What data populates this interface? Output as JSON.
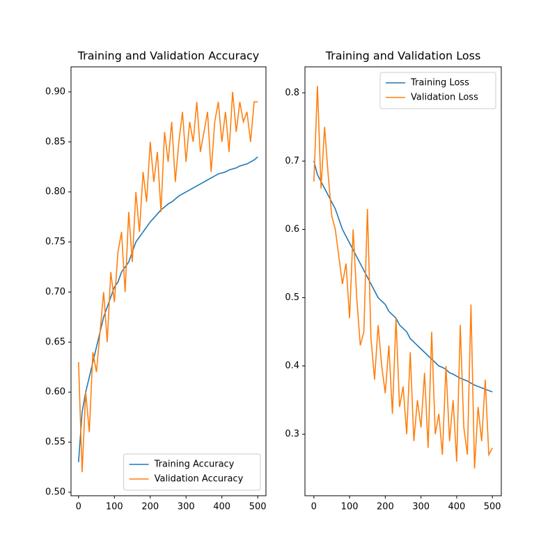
{
  "chart_data": [
    {
      "type": "line",
      "title": "Training and Validation Accuracy",
      "x": [
        0,
        10,
        20,
        30,
        40,
        50,
        60,
        70,
        80,
        90,
        100,
        110,
        120,
        130,
        140,
        150,
        160,
        170,
        180,
        190,
        200,
        210,
        220,
        230,
        240,
        250,
        260,
        270,
        280,
        290,
        300,
        310,
        320,
        330,
        340,
        350,
        360,
        370,
        380,
        390,
        400,
        410,
        420,
        430,
        440,
        450,
        460,
        470,
        480,
        490,
        500
      ],
      "series": [
        {
          "name": "Training Accuracy",
          "color": "#1f77b4",
          "values": [
            0.53,
            0.58,
            0.6,
            0.615,
            0.63,
            0.645,
            0.66,
            0.675,
            0.685,
            0.695,
            0.705,
            0.71,
            0.72,
            0.725,
            0.73,
            0.74,
            0.75,
            0.755,
            0.76,
            0.765,
            0.77,
            0.774,
            0.778,
            0.782,
            0.785,
            0.788,
            0.79,
            0.793,
            0.796,
            0.798,
            0.8,
            0.802,
            0.804,
            0.806,
            0.808,
            0.81,
            0.812,
            0.814,
            0.816,
            0.818,
            0.819,
            0.82,
            0.822,
            0.823,
            0.824,
            0.826,
            0.827,
            0.828,
            0.83,
            0.832,
            0.835
          ]
        },
        {
          "name": "Validation Accuracy",
          "color": "#ff7f0e",
          "values": [
            0.63,
            0.52,
            0.6,
            0.56,
            0.64,
            0.62,
            0.66,
            0.7,
            0.65,
            0.72,
            0.69,
            0.74,
            0.76,
            0.7,
            0.78,
            0.73,
            0.8,
            0.76,
            0.82,
            0.79,
            0.85,
            0.81,
            0.84,
            0.78,
            0.86,
            0.83,
            0.87,
            0.81,
            0.85,
            0.88,
            0.83,
            0.87,
            0.85,
            0.89,
            0.84,
            0.86,
            0.88,
            0.82,
            0.87,
            0.89,
            0.85,
            0.88,
            0.84,
            0.9,
            0.86,
            0.89,
            0.87,
            0.88,
            0.85,
            0.89,
            0.89
          ]
        }
      ],
      "xlim": [
        -21,
        523
      ],
      "xticks": [
        0,
        100,
        200,
        300,
        400,
        500
      ],
      "ylim": [
        0.4965,
        0.925
      ],
      "yticks": [
        {
          "value": 0.5,
          "label": "0.50"
        },
        0.55,
        {
          "value": 0.6,
          "label": "0.60"
        },
        0.65,
        {
          "value": 0.7,
          "label": "0.70"
        },
        0.75,
        {
          "value": 0.8,
          "label": "0.80"
        },
        0.85,
        {
          "value": 0.9,
          "label": "0.90"
        }
      ],
      "legend": "lower right"
    },
    {
      "type": "line",
      "title": "Training and Validation Loss",
      "x": [
        0,
        10,
        20,
        30,
        40,
        50,
        60,
        70,
        80,
        90,
        100,
        110,
        120,
        130,
        140,
        150,
        160,
        170,
        180,
        190,
        200,
        210,
        220,
        230,
        240,
        250,
        260,
        270,
        280,
        290,
        300,
        310,
        320,
        330,
        340,
        350,
        360,
        370,
        380,
        390,
        400,
        410,
        420,
        430,
        440,
        450,
        460,
        470,
        480,
        490,
        500
      ],
      "series": [
        {
          "name": "Training Loss",
          "color": "#1f77b4",
          "values": [
            0.7,
            0.68,
            0.67,
            0.66,
            0.65,
            0.64,
            0.63,
            0.615,
            0.6,
            0.59,
            0.58,
            0.57,
            0.56,
            0.55,
            0.54,
            0.53,
            0.52,
            0.51,
            0.5,
            0.495,
            0.49,
            0.48,
            0.475,
            0.47,
            0.46,
            0.455,
            0.45,
            0.44,
            0.435,
            0.43,
            0.425,
            0.42,
            0.415,
            0.41,
            0.405,
            0.4,
            0.398,
            0.395,
            0.39,
            0.388,
            0.385,
            0.382,
            0.38,
            0.378,
            0.375,
            0.372,
            0.37,
            0.368,
            0.366,
            0.364,
            0.362
          ]
        },
        {
          "name": "Validation Loss",
          "color": "#ff7f0e",
          "values": [
            0.67,
            0.81,
            0.66,
            0.75,
            0.68,
            0.62,
            0.6,
            0.56,
            0.52,
            0.55,
            0.47,
            0.6,
            0.5,
            0.43,
            0.45,
            0.63,
            0.44,
            0.38,
            0.46,
            0.4,
            0.36,
            0.43,
            0.33,
            0.47,
            0.34,
            0.37,
            0.3,
            0.42,
            0.29,
            0.35,
            0.31,
            0.39,
            0.28,
            0.45,
            0.3,
            0.33,
            0.27,
            0.4,
            0.29,
            0.35,
            0.26,
            0.46,
            0.31,
            0.27,
            0.49,
            0.25,
            0.34,
            0.29,
            0.38,
            0.27,
            0.28
          ]
        }
      ],
      "xlim": [
        -25,
        525
      ],
      "xticks": [
        0,
        100,
        200,
        300,
        400,
        500
      ],
      "ylim": [
        0.21,
        0.838
      ],
      "yticks": [
        0.3,
        0.4,
        0.5,
        0.6,
        0.7,
        0.8
      ],
      "legend": "upper right"
    }
  ]
}
